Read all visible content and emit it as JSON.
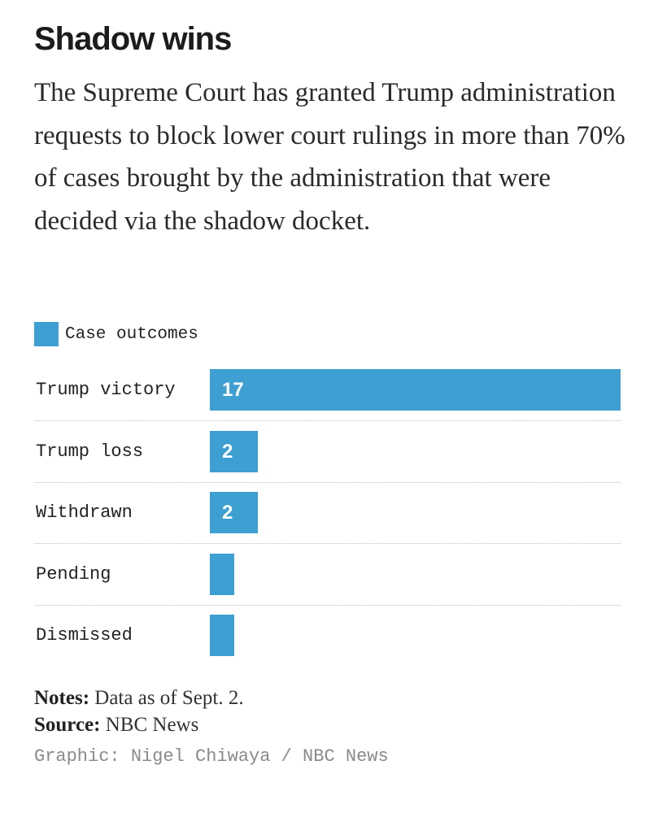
{
  "title": "Shadow wins",
  "subtitle": "The Supreme Court has granted Trump administration requests to block lower court rulings in more than 70% of cases brought by the administration that were decided via the shadow docket.",
  "legend": {
    "label": "Case outcomes",
    "color": "#3d9fd2"
  },
  "chart_data": {
    "type": "bar",
    "orientation": "horizontal",
    "title": "Shadow wins",
    "series": [
      {
        "name": "Case outcomes",
        "values": [
          17,
          2,
          2,
          1,
          1
        ]
      }
    ],
    "categories": [
      "Trump victory",
      "Trump loss",
      "Withdrawn",
      "Pending",
      "Dismissed"
    ],
    "value_labels": [
      "17",
      "2",
      "2",
      "",
      ""
    ],
    "xlim": [
      0,
      17
    ],
    "grid": false,
    "legend_position": "top-left"
  },
  "footer": {
    "notes_label": "Notes:",
    "notes_text": "Data as of Sept. 2.",
    "source_label": "Source:",
    "source_text": "NBC News",
    "credit": "Graphic: Nigel Chiwaya / NBC News"
  }
}
